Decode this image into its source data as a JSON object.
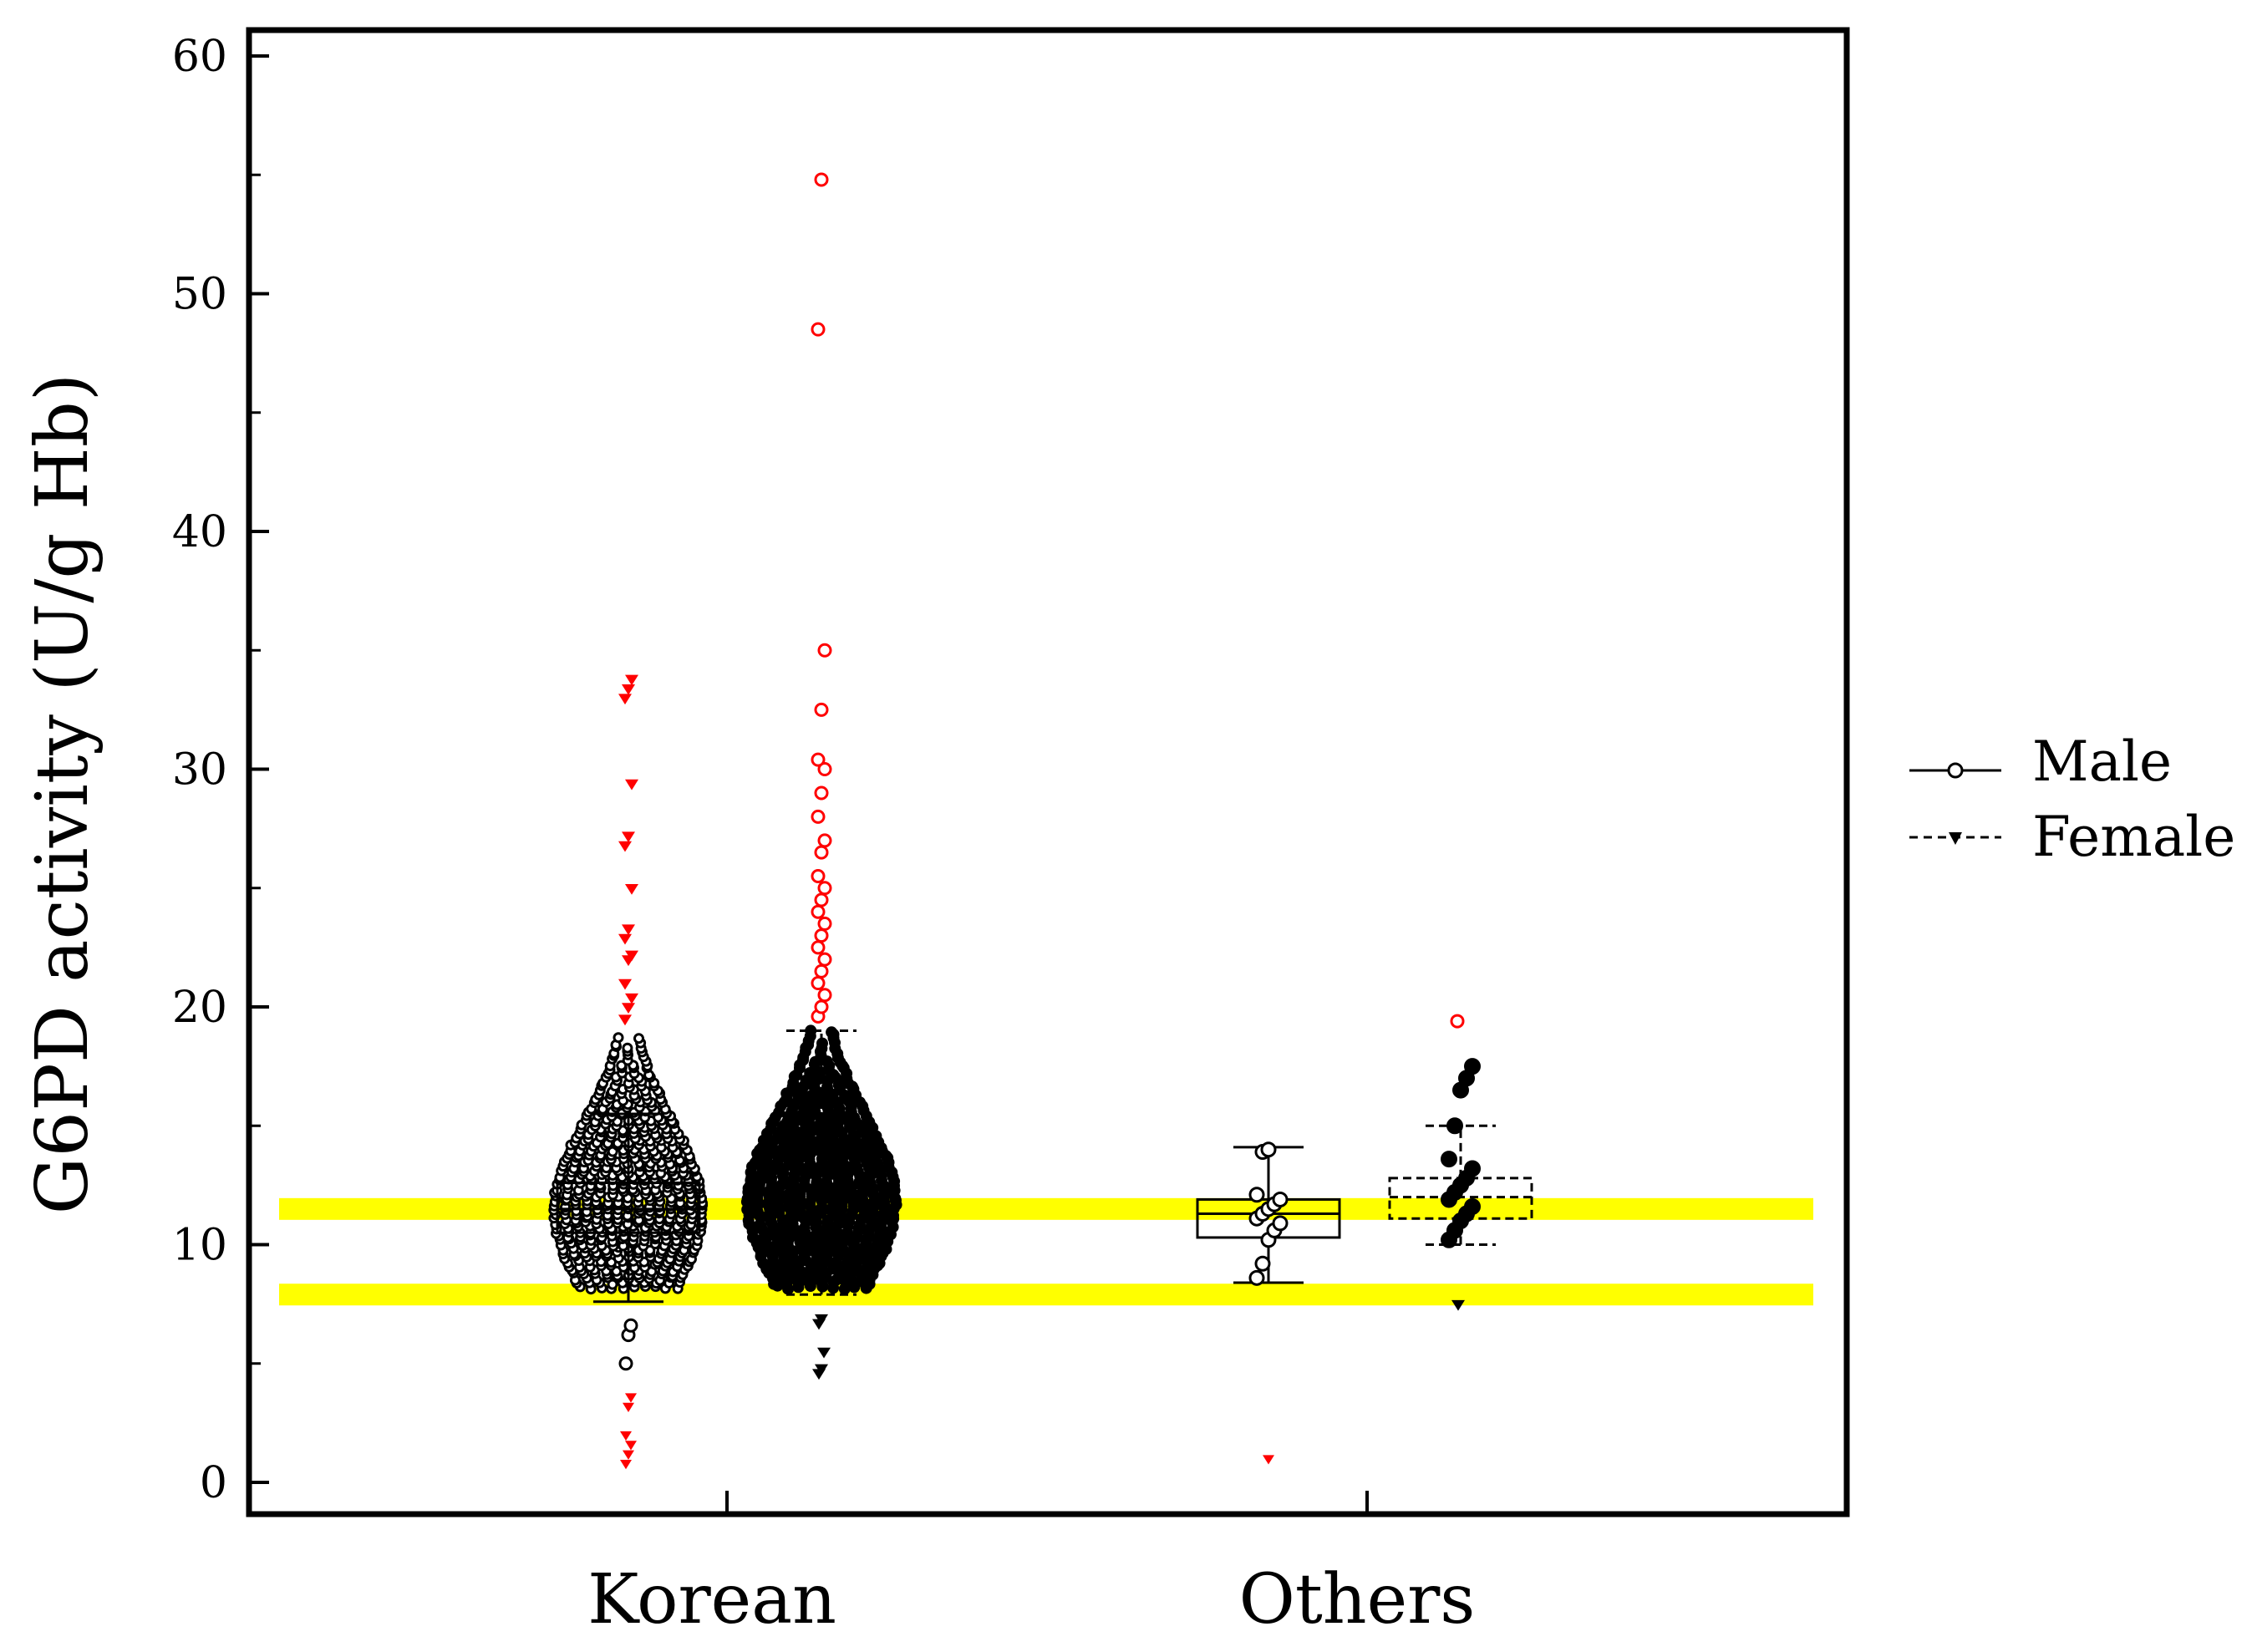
{
  "chart_data": {
    "type": "box",
    "title": "",
    "ylabel": "G6PD activity (U/g Hb)",
    "xlabel": "",
    "ylim": [
      -1,
      61
    ],
    "yticks": [
      0,
      10,
      20,
      30,
      40,
      50,
      60
    ],
    "grid": false,
    "categories": [
      "Korean",
      "Others"
    ],
    "legend": {
      "placement": "right",
      "entries": [
        {
          "label": "Male",
          "line": "solid",
          "marker": "open-circle"
        },
        {
          "label": "Female",
          "line": "dashed",
          "marker": "filled-triangle"
        }
      ]
    },
    "reference_bands": [
      {
        "y": 11.5,
        "color": "#ffff00"
      },
      {
        "y": 7.9,
        "color": "#ffff00"
      }
    ],
    "series": [
      {
        "name": "Male",
        "category": "Korean",
        "box": {
          "whisker_low": 7.6,
          "q1": 10.5,
          "median": 11.5,
          "q3": 12.6,
          "whisker_high": 15.5
        },
        "body_range": [
          8.2,
          18.8
        ],
        "outliers_high": [
          19.5,
          20.0,
          20.4,
          21.0,
          22.0,
          22.2,
          22.9,
          23.3,
          25.0,
          26.8,
          27.2,
          29.4,
          33.0,
          33.4,
          33.8
        ],
        "outliers_low": [
          0.8,
          1.2,
          1.6,
          2.0,
          3.2,
          3.6,
          5.0,
          6.2,
          6.6
        ]
      },
      {
        "name": "Female",
        "category": "Korean",
        "box": {
          "whisker_low": 7.9,
          "q1": 10.6,
          "median": 11.8,
          "q3": 12.9,
          "whisker_high": 19.0
        },
        "body_range": [
          8.2,
          19.0
        ],
        "outliers_high": [
          19.6,
          20.0,
          20.5,
          21.0,
          21.5,
          22.0,
          22.5,
          23.0,
          23.5,
          24.0,
          24.5,
          25.0,
          25.5,
          26.5,
          27.0,
          28.0,
          29.0,
          30.0,
          30.4,
          32.5,
          35.0,
          48.5,
          54.8
        ],
        "outliers_low": [
          4.6,
          4.8,
          5.5,
          6.7,
          6.9
        ]
      },
      {
        "name": "Male",
        "category": "Others",
        "box": {
          "whisker_low": 8.4,
          "q1": 10.3,
          "median": 11.3,
          "q3": 11.9,
          "whisker_high": 14.1
        },
        "points": [
          8.6,
          9.2,
          10.2,
          10.6,
          10.9,
          11.1,
          11.3,
          11.5,
          11.7,
          11.9,
          12.1,
          13.9,
          14.0
        ],
        "outliers_low": [
          1.0
        ]
      },
      {
        "name": "Female",
        "category": "Others",
        "box": {
          "whisker_low": 10.0,
          "q1": 11.1,
          "median": 12.0,
          "q3": 12.8,
          "whisker_high": 15.0
        },
        "points": [
          10.2,
          10.6,
          11.0,
          11.3,
          11.6,
          11.9,
          12.2,
          12.5,
          12.8,
          13.2,
          13.6,
          15.0,
          16.5,
          17.0,
          17.5
        ],
        "outliers_low": [
          7.5
        ],
        "outliers_high": [
          19.4
        ]
      }
    ]
  }
}
